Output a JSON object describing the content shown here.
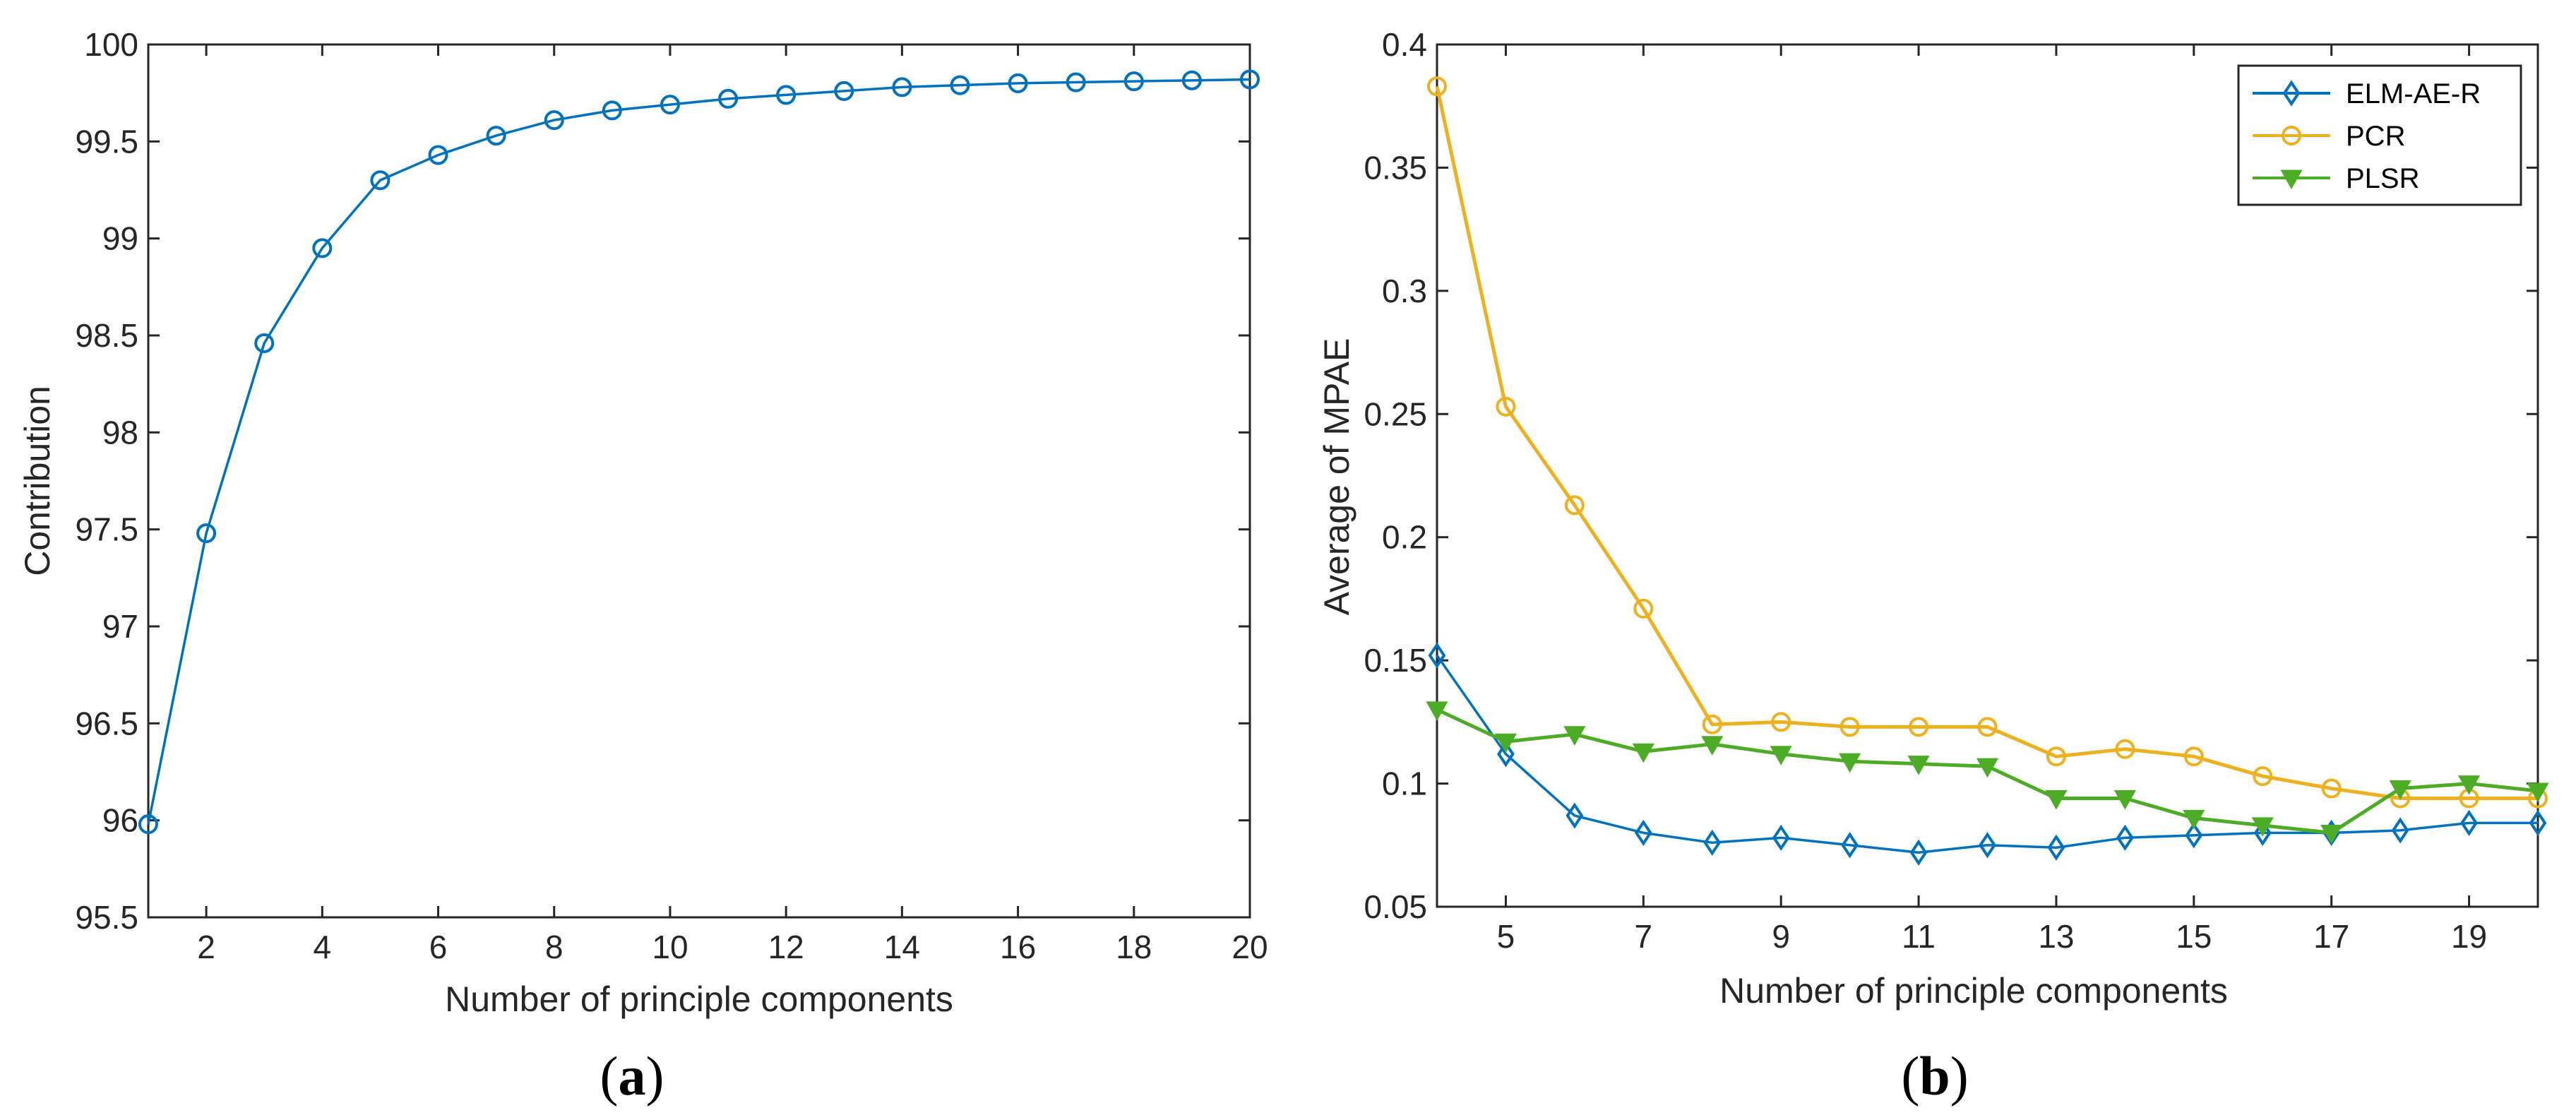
{
  "chart_data": [
    {
      "type": "line",
      "panel": "a",
      "caption_letter": "a",
      "xlabel": "Number of principle components",
      "ylabel": "Contribution",
      "xlim": [
        1,
        20
      ],
      "ylim": [
        95.5,
        100
      ],
      "xticks": [
        2,
        4,
        6,
        8,
        10,
        12,
        14,
        16,
        18,
        20
      ],
      "yticks": [
        95.5,
        96,
        96.5,
        97,
        97.5,
        98,
        98.5,
        99,
        99.5,
        100
      ],
      "grid": false,
      "series": [
        {
          "name": "Contribution",
          "color": "#0072BD",
          "marker": "circle",
          "x": [
            1,
            2,
            3,
            4,
            5,
            6,
            7,
            8,
            9,
            10,
            11,
            12,
            13,
            14,
            15,
            16,
            17,
            18,
            19,
            20
          ],
          "values": [
            95.98,
            97.48,
            98.46,
            98.95,
            99.3,
            99.43,
            99.53,
            99.61,
            99.66,
            99.69,
            99.72,
            99.74,
            99.76,
            99.78,
            99.79,
            99.8,
            99.805,
            99.81,
            99.815,
            99.82
          ]
        }
      ]
    },
    {
      "type": "line",
      "panel": "b",
      "caption_letter": "b",
      "xlabel": "Number of principle components",
      "ylabel": "Average of MPAE",
      "xlim": [
        4,
        20
      ],
      "ylim": [
        0.05,
        0.4
      ],
      "xticks": [
        5,
        7,
        9,
        11,
        13,
        15,
        17,
        19
      ],
      "yticks": [
        0.05,
        0.1,
        0.15,
        0.2,
        0.25,
        0.3,
        0.35,
        0.4
      ],
      "grid": false,
      "legend_position": "top-right",
      "series": [
        {
          "name": "ELM-AE-R",
          "color": "#0072BD",
          "marker": "diamond",
          "x": [
            4,
            5,
            6,
            7,
            8,
            9,
            10,
            11,
            12,
            13,
            14,
            15,
            16,
            17,
            18,
            19,
            20
          ],
          "values": [
            0.152,
            0.112,
            0.087,
            0.08,
            0.076,
            0.078,
            0.075,
            0.072,
            0.075,
            0.074,
            0.078,
            0.079,
            0.08,
            0.08,
            0.081,
            0.084,
            0.084
          ]
        },
        {
          "name": "PCR",
          "color": "#EDB120",
          "marker": "circle",
          "x": [
            4,
            5,
            6,
            7,
            8,
            9,
            10,
            11,
            12,
            13,
            14,
            15,
            16,
            17,
            18,
            19,
            20
          ],
          "values": [
            0.383,
            0.253,
            0.213,
            0.171,
            0.124,
            0.125,
            0.123,
            0.123,
            0.123,
            0.111,
            0.114,
            0.111,
            0.103,
            0.098,
            0.094,
            0.094,
            0.094
          ]
        },
        {
          "name": "PLSR",
          "color": "#4DAC26",
          "marker": "triangle-down",
          "x": [
            4,
            5,
            6,
            7,
            8,
            9,
            10,
            11,
            12,
            13,
            14,
            15,
            16,
            17,
            18,
            19,
            20
          ],
          "values": [
            0.13,
            0.117,
            0.12,
            0.113,
            0.116,
            0.112,
            0.109,
            0.108,
            0.107,
            0.094,
            0.094,
            0.086,
            0.083,
            0.08,
            0.098,
            0.1,
            0.097
          ]
        }
      ]
    }
  ]
}
